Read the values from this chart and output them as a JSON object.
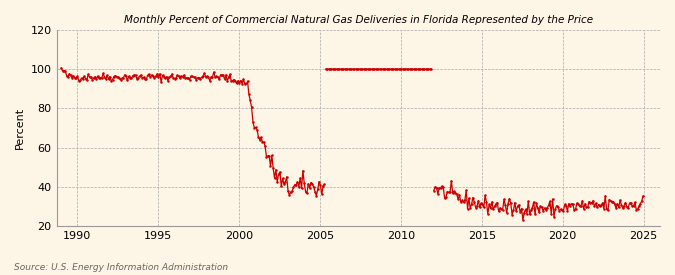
{
  "title": "Monthly Percent of Commercial Natural Gas Deliveries in Florida Represented by the Price",
  "ylabel": "Percent",
  "source": "Source: U.S. Energy Information Administration",
  "bg_color": "#fdf5e6",
  "line_color": "#cc0000",
  "ylim": [
    20,
    120
  ],
  "yticks": [
    20,
    40,
    60,
    80,
    100,
    120
  ],
  "xlim_start": 1988.75,
  "xlim_end": 2026.0,
  "xticks": [
    1990,
    1995,
    2000,
    2005,
    2010,
    2015,
    2020,
    2025
  ]
}
